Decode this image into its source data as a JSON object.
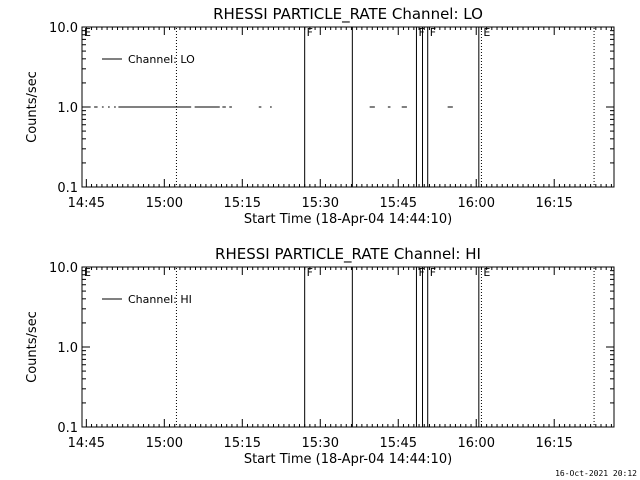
{
  "footer": {
    "date": "16-Oct-2021 20:12"
  },
  "chart_data": [
    {
      "type": "line",
      "title": "RHESSI PARTICLE_RATE Channel: LO",
      "xlabel": "Start Time (18-Apr-04 14:44:10)",
      "ylabel": "Counts/sec",
      "y_scale": "log",
      "ylim": [
        0.1,
        10.0
      ],
      "xlim": [
        "14:44:10",
        "16:26:30"
      ],
      "x_ticks": [
        "14:45",
        "15:00",
        "15:15",
        "15:30",
        "15:45",
        "16:00",
        "16:15"
      ],
      "y_ticks": [
        "0.1",
        "1.0",
        "10.0"
      ],
      "legend": {
        "position": "top-left",
        "entries": [
          "Channel: LO"
        ]
      },
      "series": [
        {
          "name": "Channel: LO",
          "segments": [
            {
              "x": [
                "14:45:30",
                "14:45:50"
              ],
              "y": [
                1.0,
                1.0
              ]
            },
            {
              "x": [
                "14:46:30",
                "14:47:10"
              ],
              "y": [
                1.0,
                1.0
              ]
            },
            {
              "x": [
                "14:48:00",
                "14:48:20"
              ],
              "y": [
                1.0,
                1.0
              ]
            },
            {
              "x": [
                "14:49:10",
                "14:49:30"
              ],
              "y": [
                1.0,
                1.0
              ]
            },
            {
              "x": [
                "14:50:20",
                "14:50:40"
              ],
              "y": [
                1.0,
                1.0
              ]
            },
            {
              "x": [
                "14:51:10",
                "15:05:10"
              ],
              "y": [
                1.0,
                1.0
              ]
            },
            {
              "x": [
                "15:05:50",
                "15:10:40"
              ],
              "y": [
                1.0,
                1.0
              ]
            },
            {
              "x": [
                "15:11:10",
                "15:11:50"
              ],
              "y": [
                1.0,
                1.0
              ]
            },
            {
              "x": [
                "15:12:30",
                "15:13:00"
              ],
              "y": [
                1.0,
                1.0
              ]
            },
            {
              "x": [
                "15:18:10",
                "15:18:40"
              ],
              "y": [
                1.0,
                1.0
              ]
            },
            {
              "x": [
                "15:20:20",
                "15:20:40"
              ],
              "y": [
                1.0,
                1.0
              ]
            },
            {
              "x": [
                "15:39:30",
                "15:40:30"
              ],
              "y": [
                1.0,
                1.0
              ]
            },
            {
              "x": [
                "15:43:00",
                "15:43:30"
              ],
              "y": [
                1.0,
                1.0
              ]
            },
            {
              "x": [
                "15:45:40",
                "15:46:40"
              ],
              "y": [
                1.0,
                1.0
              ]
            },
            {
              "x": [
                "15:54:30",
                "15:55:30"
              ],
              "y": [
                1.0,
                1.0
              ]
            }
          ]
        }
      ],
      "solid_vlines": [
        "15:27:00",
        "15:36:10",
        "15:48:30",
        "15:49:40",
        "15:50:40",
        "16:00:30"
      ],
      "dotted_vlines": [
        "15:02:20",
        "16:01:00",
        "16:22:40"
      ],
      "annotations": [
        {
          "text": "E",
          "x": "14:44:10"
        },
        {
          "text": "F",
          "x": "15:27:00"
        },
        {
          "text": "F",
          "x": "15:48:30"
        },
        {
          "text": "F",
          "x": "15:50:40"
        },
        {
          "text": "E",
          "x": "16:01:00"
        }
      ]
    },
    {
      "type": "line",
      "title": "RHESSI PARTICLE_RATE Channel: HI",
      "xlabel": "Start Time (18-Apr-04 14:44:10)",
      "ylabel": "Counts/sec",
      "y_scale": "log",
      "ylim": [
        0.1,
        10.0
      ],
      "xlim": [
        "14:44:10",
        "16:26:30"
      ],
      "x_ticks": [
        "14:45",
        "15:00",
        "15:15",
        "15:30",
        "15:45",
        "16:00",
        "16:15"
      ],
      "y_ticks": [
        "0.1",
        "1.0",
        "10.0"
      ],
      "legend": {
        "position": "top-left",
        "entries": [
          "Channel: HI"
        ]
      },
      "series": [
        {
          "name": "Channel: HI",
          "segments": []
        }
      ],
      "solid_vlines": [
        "15:27:00",
        "15:36:10",
        "15:48:30",
        "15:49:40",
        "15:50:40",
        "16:00:30"
      ],
      "dotted_vlines": [
        "15:02:20",
        "16:01:00",
        "16:22:40"
      ],
      "annotations": [
        {
          "text": "E",
          "x": "14:44:10"
        },
        {
          "text": "F",
          "x": "15:27:00"
        },
        {
          "text": "F",
          "x": "15:48:30"
        },
        {
          "text": "F",
          "x": "15:50:40"
        },
        {
          "text": "E",
          "x": "16:01:00"
        }
      ]
    }
  ]
}
